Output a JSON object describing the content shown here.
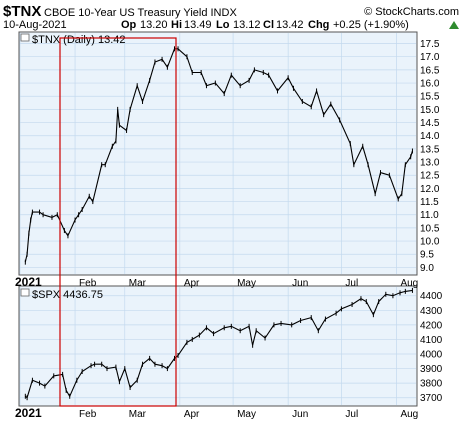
{
  "header": {
    "symbol": "$TNX",
    "description": "CBOE 10-Year US Treasury Yield INDX",
    "watermark": "© StockCharts.com",
    "date": "10-Aug-2021",
    "op_label": "Op",
    "op_value": "13.20",
    "hi_label": "Hi",
    "hi_value": "13.49",
    "lo_label": "Lo",
    "lo_value": "13.12",
    "cl_label": "Cl",
    "cl_value": "13.42",
    "chg_label": "Chg",
    "chg_value": "+0.25 (+1.90%)",
    "up_icon": "triangle-up-icon"
  },
  "colors": {
    "panel_bg": "#eaf3fb",
    "grid": "#c3d9ee",
    "price": "#000000",
    "highlight": "#cc0000",
    "up": "#2e8b2e"
  },
  "chart_data": [
    {
      "type": "line",
      "panel": "top",
      "legend": "$TNX (Daily) 13.42",
      "x_axis_labels": [
        "2021",
        "Feb",
        "Mar",
        "Apr",
        "May",
        "Jun",
        "Jul",
        "Aug"
      ],
      "y_ticks": [
        9.0,
        9.5,
        10.0,
        10.5,
        11.0,
        11.5,
        12.0,
        12.5,
        13.0,
        13.5,
        14.0,
        14.5,
        15.0,
        15.5,
        16.0,
        16.5,
        17.0,
        17.5
      ],
      "ylim": [
        8.75,
        17.9
      ],
      "grid": true,
      "x": [
        "2021-01-04",
        "2021-01-05",
        "2021-01-06",
        "2021-01-07",
        "2021-01-08",
        "2021-01-12",
        "2021-01-14",
        "2021-01-19",
        "2021-01-22",
        "2021-01-26",
        "2021-01-28",
        "2021-02-01",
        "2021-02-03",
        "2021-02-05",
        "2021-02-09",
        "2021-02-11",
        "2021-02-16",
        "2021-02-18",
        "2021-02-22",
        "2021-02-24",
        "2021-02-25",
        "2021-02-26",
        "2021-03-02",
        "2021-03-04",
        "2021-03-08",
        "2021-03-11",
        "2021-03-15",
        "2021-03-18",
        "2021-03-22",
        "2021-03-25",
        "2021-03-29",
        "2021-03-31",
        "2021-04-05",
        "2021-04-08",
        "2021-04-13",
        "2021-04-16",
        "2021-04-21",
        "2021-04-26",
        "2021-04-30",
        "2021-05-05",
        "2021-05-10",
        "2021-05-13",
        "2021-05-18",
        "2021-05-21",
        "2021-05-26",
        "2021-06-01",
        "2021-06-04",
        "2021-06-09",
        "2021-06-14",
        "2021-06-17",
        "2021-06-21",
        "2021-06-25",
        "2021-06-30",
        "2021-07-06",
        "2021-07-08",
        "2021-07-13",
        "2021-07-16",
        "2021-07-20",
        "2021-07-23",
        "2021-07-28",
        "2021-08-02",
        "2021-08-04",
        "2021-08-06",
        "2021-08-09",
        "2021-08-10"
      ],
      "values": [
        9.2,
        9.5,
        10.3,
        10.8,
        11.1,
        11.1,
        11.0,
        10.9,
        11.0,
        10.4,
        10.2,
        10.8,
        11.0,
        11.2,
        11.7,
        11.5,
        12.9,
        12.9,
        13.6,
        13.8,
        15.0,
        14.4,
        14.2,
        15.0,
        15.9,
        15.3,
        16.1,
        16.8,
        16.9,
        16.6,
        17.3,
        17.3,
        17.0,
        16.4,
        16.4,
        15.9,
        16.0,
        15.6,
        16.3,
        15.9,
        16.1,
        16.5,
        16.4,
        16.3,
        15.7,
        16.2,
        15.8,
        15.3,
        15.1,
        15.7,
        14.8,
        15.2,
        14.6,
        13.7,
        12.9,
        13.6,
        12.9,
        11.8,
        12.6,
        12.5,
        11.6,
        11.8,
        12.9,
        13.2,
        13.42
      ]
    },
    {
      "type": "line",
      "panel": "bottom",
      "legend": "$SPX 4436.75",
      "x_axis_labels": [
        "2021",
        "Feb",
        "Mar",
        "Apr",
        "May",
        "Jun",
        "Jul",
        "Aug"
      ],
      "y_ticks": [
        3700,
        3800,
        3900,
        4000,
        4100,
        4200,
        4300,
        4400
      ],
      "ylim": [
        3650,
        4460
      ],
      "grid": true,
      "x": [
        "2021-01-04",
        "2021-01-05",
        "2021-01-08",
        "2021-01-12",
        "2021-01-15",
        "2021-01-20",
        "2021-01-25",
        "2021-01-27",
        "2021-01-29",
        "2021-02-02",
        "2021-02-05",
        "2021-02-10",
        "2021-02-12",
        "2021-02-16",
        "2021-02-19",
        "2021-02-24",
        "2021-02-26",
        "2021-03-01",
        "2021-03-04",
        "2021-03-08",
        "2021-03-11",
        "2021-03-15",
        "2021-03-18",
        "2021-03-22",
        "2021-03-25",
        "2021-03-29",
        "2021-03-31",
        "2021-04-05",
        "2021-04-08",
        "2021-04-12",
        "2021-04-16",
        "2021-04-20",
        "2021-04-26",
        "2021-04-30",
        "2021-05-05",
        "2021-05-10",
        "2021-05-12",
        "2021-05-14",
        "2021-05-19",
        "2021-05-24",
        "2021-05-28",
        "2021-06-03",
        "2021-06-08",
        "2021-06-14",
        "2021-06-18",
        "2021-06-22",
        "2021-06-28",
        "2021-07-01",
        "2021-07-07",
        "2021-07-12",
        "2021-07-15",
        "2021-07-19",
        "2021-07-22",
        "2021-07-26",
        "2021-07-30",
        "2021-08-03",
        "2021-08-06",
        "2021-08-10"
      ],
      "values": [
        3710,
        3700,
        3820,
        3800,
        3780,
        3850,
        3860,
        3750,
        3710,
        3820,
        3880,
        3920,
        3930,
        3930,
        3900,
        3910,
        3810,
        3900,
        3770,
        3820,
        3930,
        3970,
        3930,
        3920,
        3900,
        3970,
        3990,
        4080,
        4100,
        4130,
        4180,
        4140,
        4180,
        4190,
        4160,
        4190,
        4060,
        4160,
        4110,
        4200,
        4210,
        4200,
        4230,
        4250,
        4160,
        4240,
        4280,
        4310,
        4340,
        4380,
        4360,
        4270,
        4360,
        4410,
        4400,
        4420,
        4430,
        4436.75
      ]
    }
  ]
}
